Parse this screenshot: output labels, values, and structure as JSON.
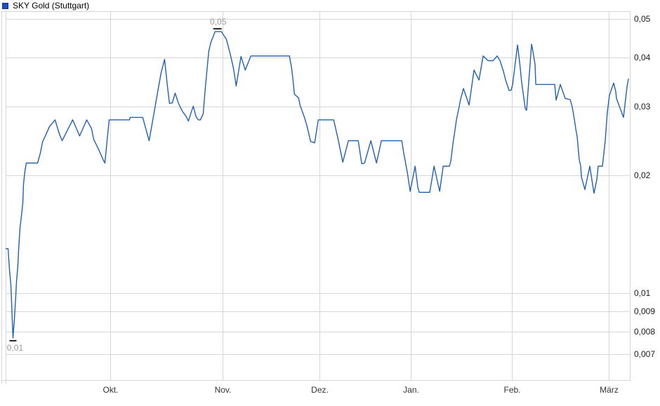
{
  "legend": {
    "title": "SKY Gold (Stuttgart)",
    "swatch_color": "#1c4fc2"
  },
  "chart_data": {
    "type": "line",
    "title": "SKY Gold (Stuttgart)",
    "line_color": "#2161b2",
    "grid": true,
    "y_scale": "log",
    "ylim": [
      0.006,
      0.0523
    ],
    "legend_position": "top-left",
    "yticks": [
      {
        "value": 0.05,
        "label": "0,05"
      },
      {
        "value": 0.04,
        "label": "0,04"
      },
      {
        "value": 0.03,
        "label": "0,03"
      },
      {
        "value": 0.02,
        "label": "0,02"
      },
      {
        "value": 0.01,
        "label": "0,01"
      },
      {
        "value": 0.009,
        "label": "0,009"
      },
      {
        "value": 0.008,
        "label": "0,008"
      },
      {
        "value": 0.007,
        "label": "0,007"
      }
    ],
    "xticks": [
      {
        "label": "Okt.",
        "pos": 16.76
      },
      {
        "label": "Nov.",
        "pos": 34.76
      },
      {
        "label": "Dez.",
        "pos": 50.28
      },
      {
        "label": "Jan.",
        "pos": 64.84
      },
      {
        "label": "Feb.",
        "pos": 81.1
      },
      {
        "label": "März",
        "pos": 96.63
      }
    ],
    "min_marker": {
      "pos": 1.12,
      "value": 0.0077,
      "label": "0,01"
    },
    "max_marker": {
      "pos": 33.9,
      "value": 0.0465,
      "label": "0,05"
    },
    "points": [
      [
        0,
        0.013
      ],
      [
        0.34,
        0.013
      ],
      [
        0.56,
        0.0115
      ],
      [
        0.79,
        0.0105
      ],
      [
        0.9,
        0.0095
      ],
      [
        1.0,
        0.0086
      ],
      [
        1.12,
        0.0077
      ],
      [
        1.35,
        0.0086
      ],
      [
        1.57,
        0.0098
      ],
      [
        1.69,
        0.0107
      ],
      [
        1.91,
        0.0118
      ],
      [
        2.02,
        0.0128
      ],
      [
        2.25,
        0.0147
      ],
      [
        2.47,
        0.0157
      ],
      [
        2.7,
        0.017
      ],
      [
        2.81,
        0.019
      ],
      [
        3.04,
        0.0205
      ],
      [
        3.26,
        0.0215
      ],
      [
        5.06,
        0.0215
      ],
      [
        5.51,
        0.0228
      ],
      [
        5.85,
        0.0243
      ],
      [
        6.3,
        0.0252
      ],
      [
        6.97,
        0.0266
      ],
      [
        7.87,
        0.0277
      ],
      [
        8.55,
        0.0255
      ],
      [
        9.0,
        0.0245
      ],
      [
        10.69,
        0.0277
      ],
      [
        11.81,
        0.0252
      ],
      [
        12.94,
        0.0277
      ],
      [
        13.72,
        0.0263
      ],
      [
        14.06,
        0.0247
      ],
      [
        14.85,
        0.0233
      ],
      [
        15.64,
        0.0218
      ],
      [
        15.86,
        0.0215
      ],
      [
        16.2,
        0.0244
      ],
      [
        16.54,
        0.0277
      ],
      [
        19.8,
        0.0277
      ],
      [
        19.91,
        0.0281
      ],
      [
        21.93,
        0.0281
      ],
      [
        22.5,
        0.026
      ],
      [
        22.95,
        0.0245
      ],
      [
        24.07,
        0.031
      ],
      [
        24.86,
        0.0365
      ],
      [
        25.42,
        0.0395
      ],
      [
        25.87,
        0.0338
      ],
      [
        26.21,
        0.0305
      ],
      [
        26.66,
        0.0306
      ],
      [
        27.11,
        0.0324
      ],
      [
        27.67,
        0.0305
      ],
      [
        28.01,
        0.0297
      ],
      [
        28.35,
        0.029
      ],
      [
        28.8,
        0.0284
      ],
      [
        29.25,
        0.0275
      ],
      [
        29.7,
        0.029
      ],
      [
        30.03,
        0.03
      ],
      [
        30.48,
        0.0282
      ],
      [
        30.82,
        0.0277
      ],
      [
        31.16,
        0.0277
      ],
      [
        31.61,
        0.0287
      ],
      [
        31.95,
        0.0334
      ],
      [
        32.17,
        0.0363
      ],
      [
        32.51,
        0.0415
      ],
      [
        32.85,
        0.0437
      ],
      [
        33.18,
        0.045
      ],
      [
        33.52,
        0.0465
      ],
      [
        34.53,
        0.0465
      ],
      [
        35.32,
        0.0445
      ],
      [
        35.66,
        0.0425
      ],
      [
        36.0,
        0.0404
      ],
      [
        36.45,
        0.0376
      ],
      [
        36.9,
        0.0338
      ],
      [
        37.68,
        0.0402
      ],
      [
        38.36,
        0.0371
      ],
      [
        39.26,
        0.0403
      ],
      [
        45.44,
        0.0403
      ],
      [
        45.78,
        0.0376
      ],
      [
        46.01,
        0.035
      ],
      [
        46.23,
        0.0322
      ],
      [
        46.91,
        0.0315
      ],
      [
        47.13,
        0.0302
      ],
      [
        47.81,
        0.0282
      ],
      [
        48.26,
        0.0267
      ],
      [
        48.82,
        0.0244
      ],
      [
        49.49,
        0.0242
      ],
      [
        50.06,
        0.0277
      ],
      [
        52.53,
        0.0277
      ],
      [
        52.76,
        0.0267
      ],
      [
        53.32,
        0.0244
      ],
      [
        53.99,
        0.0216
      ],
      [
        54.89,
        0.0245
      ],
      [
        56.47,
        0.0245
      ],
      [
        57.03,
        0.0214
      ],
      [
        57.48,
        0.0215
      ],
      [
        58.49,
        0.0245
      ],
      [
        59.39,
        0.0215
      ],
      [
        60.18,
        0.0245
      ],
      [
        63.44,
        0.0245
      ],
      [
        63.78,
        0.0227
      ],
      [
        64.34,
        0.0203
      ],
      [
        64.79,
        0.0182
      ],
      [
        65.58,
        0.0211
      ],
      [
        66.03,
        0.0186
      ],
      [
        66.25,
        0.0181
      ],
      [
        67.94,
        0.0181
      ],
      [
        68.62,
        0.0211
      ],
      [
        69.52,
        0.0182
      ],
      [
        70.08,
        0.0211
      ],
      [
        71.09,
        0.0211
      ],
      [
        71.32,
        0.0218
      ],
      [
        71.65,
        0.0241
      ],
      [
        71.88,
        0.0255
      ],
      [
        72.22,
        0.0278
      ],
      [
        72.55,
        0.0294
      ],
      [
        72.89,
        0.0313
      ],
      [
        73.34,
        0.0333
      ],
      [
        74.24,
        0.0302
      ],
      [
        75.03,
        0.0371
      ],
      [
        75.82,
        0.035
      ],
      [
        76.49,
        0.0403
      ],
      [
        77.28,
        0.0392
      ],
      [
        78.07,
        0.0392
      ],
      [
        78.74,
        0.0403
      ],
      [
        79.19,
        0.0392
      ],
      [
        79.75,
        0.0368
      ],
      [
        80.09,
        0.035
      ],
      [
        80.65,
        0.0329
      ],
      [
        80.99,
        0.033
      ],
      [
        81.21,
        0.0341
      ],
      [
        82.0,
        0.043
      ],
      [
        82.34,
        0.0388
      ],
      [
        82.68,
        0.0344
      ],
      [
        83.24,
        0.0296
      ],
      [
        83.46,
        0.0293
      ],
      [
        84.25,
        0.0432
      ],
      [
        84.59,
        0.0403
      ],
      [
        84.81,
        0.0384
      ],
      [
        84.93,
        0.0341
      ],
      [
        87.96,
        0.0341
      ],
      [
        88.19,
        0.0311
      ],
      [
        88.86,
        0.0341
      ],
      [
        89.65,
        0.0314
      ],
      [
        90.44,
        0.0312
      ],
      [
        90.78,
        0.0298
      ],
      [
        91.11,
        0.0278
      ],
      [
        91.34,
        0.0262
      ],
      [
        91.56,
        0.0251
      ],
      [
        91.9,
        0.0219
      ],
      [
        92.13,
        0.0211
      ],
      [
        92.24,
        0.0198
      ],
      [
        92.8,
        0.0184
      ],
      [
        93.59,
        0.0211
      ],
      [
        94.26,
        0.018
      ],
      [
        94.71,
        0.0195
      ],
      [
        94.94,
        0.0211
      ],
      [
        95.61,
        0.0211
      ],
      [
        96.06,
        0.0245
      ],
      [
        96.4,
        0.029
      ],
      [
        96.74,
        0.032
      ],
      [
        97.41,
        0.0344
      ],
      [
        97.75,
        0.0327
      ],
      [
        97.86,
        0.0314
      ],
      [
        98.99,
        0.0281
      ],
      [
        99.55,
        0.0336
      ],
      [
        99.78,
        0.0352
      ]
    ]
  }
}
